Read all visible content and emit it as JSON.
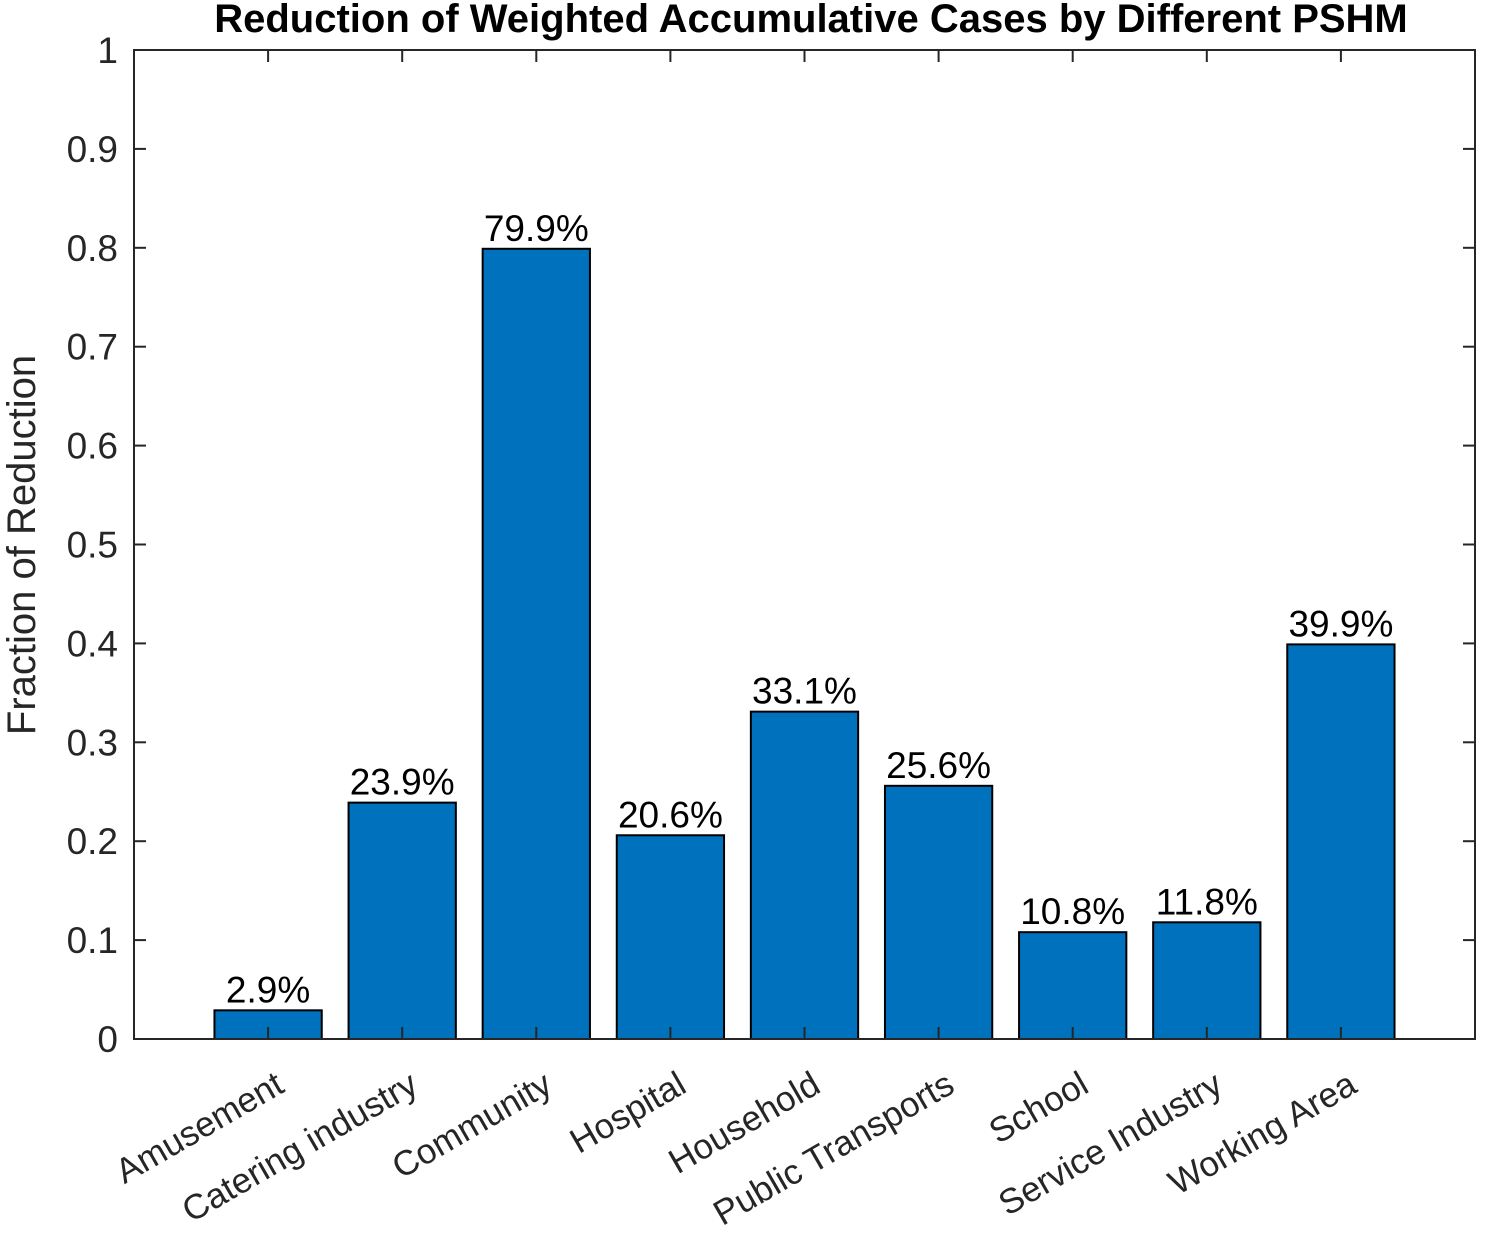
{
  "chart_data": {
    "type": "bar",
    "title": "Reduction of Weighted Accumulative Cases by Different PSHM",
    "xlabel": "",
    "ylabel": "Fraction of Reduction",
    "categories": [
      "Amusement",
      "Catering industry",
      "Community",
      "Hospital",
      "Household",
      "Public Transports",
      "School",
      "Service Industry",
      "Working Area"
    ],
    "values": [
      0.029,
      0.239,
      0.799,
      0.206,
      0.331,
      0.256,
      0.108,
      0.118,
      0.399
    ],
    "data_labels": [
      "2.9%",
      "23.9%",
      "79.9%",
      "20.6%",
      "33.1%",
      "25.6%",
      "10.8%",
      "11.8%",
      "39.9%"
    ],
    "ylim": [
      0,
      1
    ],
    "yticks": [
      0,
      0.1,
      0.2,
      0.3,
      0.4,
      0.5,
      0.6,
      0.7,
      0.8,
      0.9,
      1
    ],
    "ytick_labels": [
      "0",
      "0.1",
      "0.2",
      "0.3",
      "0.4",
      "0.5",
      "0.6",
      "0.7",
      "0.8",
      "0.9",
      "1"
    ],
    "grid": false,
    "bar_color": "#0072BD"
  }
}
